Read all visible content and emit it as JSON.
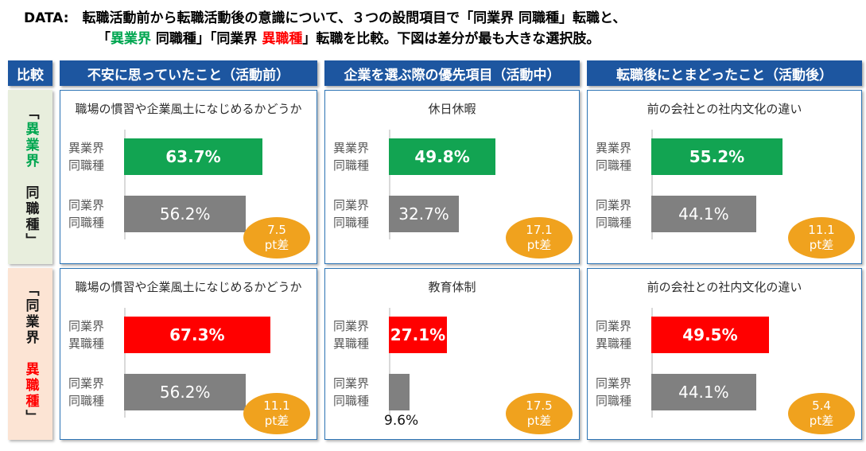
{
  "scale_max": 85,
  "colors": {
    "header_bg": "#1D56A0",
    "cell_border": "#2E75B6",
    "green": "#12A452",
    "green_text": "#00A650",
    "red": "#FF0000",
    "gray": "#808080",
    "orange": "#F0A21E",
    "row1_label_bg": "#E8EEDD",
    "row2_label_bg": "#FCE4D4"
  },
  "title": {
    "line1": "DATA:　転職活動前から転職活動後の意識について、３つの設問項目で「同業界 同職種」転職と、",
    "line2_segments": [
      {
        "t": "「",
        "c": "ink"
      },
      {
        "t": "異業界",
        "c": "green"
      },
      {
        "t": " 同職種」「同業界 ",
        "c": "ink"
      },
      {
        "t": "異職種",
        "c": "red"
      },
      {
        "t": "」転職を比較。下図は差分が最も大きな選択肢。",
        "c": "ink"
      }
    ]
  },
  "header": {
    "corner": "比較",
    "columns": [
      "不安に思っていたこと（活動前）",
      "企業を選ぶ際の優先項目（活動中）",
      "転職後にとまどったこと（活動後）"
    ]
  },
  "rows": [
    {
      "label_segments": [
        {
          "t": "「",
          "c": "ink"
        },
        {
          "t": "異業界",
          "c": "green"
        },
        {
          "t": "　同職種」",
          "c": "ink"
        }
      ],
      "cells": [
        {
          "title": "職場の慣習や企業風土になじめるかどうか",
          "bars": [
            {
              "cat1": "異業界",
              "cat2": "同職種",
              "value": 63.7,
              "display": "63.7%",
              "color": "green",
              "label_pos": "inside"
            },
            {
              "cat1": "同業界",
              "cat2": "同職種",
              "value": 56.2,
              "display": "56.2%",
              "color": "gray",
              "label_pos": "inside"
            }
          ],
          "badge": {
            "value": "7.5",
            "unit": "pt差"
          }
        },
        {
          "title": "休日休暇",
          "bars": [
            {
              "cat1": "異業界",
              "cat2": "同職種",
              "value": 49.8,
              "display": "49.8%",
              "color": "green",
              "label_pos": "inside"
            },
            {
              "cat1": "同業界",
              "cat2": "同職種",
              "value": 32.7,
              "display": "32.7%",
              "color": "gray",
              "label_pos": "inside"
            }
          ],
          "badge": {
            "value": "17.1",
            "unit": "pt差"
          }
        },
        {
          "title": "前の会社との社内文化の違い",
          "bars": [
            {
              "cat1": "異業界",
              "cat2": "同職種",
              "value": 55.2,
              "display": "55.2%",
              "color": "green",
              "label_pos": "inside"
            },
            {
              "cat1": "同業界",
              "cat2": "同職種",
              "value": 44.1,
              "display": "44.1%",
              "color": "gray",
              "label_pos": "inside"
            }
          ],
          "badge": {
            "value": "11.1",
            "unit": "pt差"
          }
        }
      ]
    },
    {
      "label_segments": [
        {
          "t": "「同業界　",
          "c": "ink"
        },
        {
          "t": "異職種",
          "c": "red"
        },
        {
          "t": "」",
          "c": "ink"
        }
      ],
      "cells": [
        {
          "title": "職場の慣習や企業風土になじめるかどうか",
          "bars": [
            {
              "cat1": "同業界",
              "cat2": "異職種",
              "value": 67.3,
              "display": "67.3%",
              "color": "red",
              "label_pos": "inside"
            },
            {
              "cat1": "同業界",
              "cat2": "同職種",
              "value": 56.2,
              "display": "56.2%",
              "color": "gray",
              "label_pos": "inside"
            }
          ],
          "badge": {
            "value": "11.1",
            "unit": "pt差"
          }
        },
        {
          "title": "教育体制",
          "bars": [
            {
              "cat1": "同業界",
              "cat2": "異職種",
              "value": 27.1,
              "display": "27.1%",
              "color": "red",
              "label_pos": "inside"
            },
            {
              "cat1": "同業界",
              "cat2": "同職種",
              "value": 9.6,
              "display": "9.6%",
              "color": "gray",
              "label_pos": "below"
            }
          ],
          "badge": {
            "value": "17.5",
            "unit": "pt差"
          }
        },
        {
          "title": "前の会社との社内文化の違い",
          "bars": [
            {
              "cat1": "同業界",
              "cat2": "異職種",
              "value": 49.5,
              "display": "49.5%",
              "color": "red",
              "label_pos": "inside"
            },
            {
              "cat1": "同業界",
              "cat2": "同職種",
              "value": 44.1,
              "display": "44.1%",
              "color": "gray",
              "label_pos": "inside"
            }
          ],
          "badge": {
            "value": "5.4",
            "unit": "pt差"
          }
        }
      ]
    }
  ],
  "chart_data": [
    {
      "type": "bar",
      "orientation": "horizontal",
      "row": "「異業界 同職種」",
      "column": "不安に思っていたこと（活動前）",
      "title": "職場の慣習や企業風土になじめるかどうか",
      "categories": [
        "異業界 同職種",
        "同業界 同職種"
      ],
      "values": [
        63.7,
        56.2
      ],
      "unit": "%",
      "diff": "7.5pt差",
      "xlim": [
        0,
        85
      ],
      "grid": false,
      "legend": false
    },
    {
      "type": "bar",
      "orientation": "horizontal",
      "row": "「異業界 同職種」",
      "column": "企業を選ぶ際の優先項目（活動中）",
      "title": "休日休暇",
      "categories": [
        "異業界 同職種",
        "同業界 同職種"
      ],
      "values": [
        49.8,
        32.7
      ],
      "unit": "%",
      "diff": "17.1pt差",
      "xlim": [
        0,
        85
      ],
      "grid": false,
      "legend": false
    },
    {
      "type": "bar",
      "orientation": "horizontal",
      "row": "「異業界 同職種」",
      "column": "転職後にとまどったこと（活動後）",
      "title": "前の会社との社内文化の違い",
      "categories": [
        "異業界 同職種",
        "同業界 同職種"
      ],
      "values": [
        55.2,
        44.1
      ],
      "unit": "%",
      "diff": "11.1pt差",
      "xlim": [
        0,
        85
      ],
      "grid": false,
      "legend": false
    },
    {
      "type": "bar",
      "orientation": "horizontal",
      "row": "「同業界 異職種」",
      "column": "不安に思っていたこと（活動前）",
      "title": "職場の慣習や企業風土になじめるかどうか",
      "categories": [
        "同業界 異職種",
        "同業界 同職種"
      ],
      "values": [
        67.3,
        56.2
      ],
      "unit": "%",
      "diff": "11.1pt差",
      "xlim": [
        0,
        85
      ],
      "grid": false,
      "legend": false
    },
    {
      "type": "bar",
      "orientation": "horizontal",
      "row": "「同業界 異職種」",
      "column": "企業を選ぶ際の優先項目（活動中）",
      "title": "教育体制",
      "categories": [
        "同業界 異職種",
        "同業界 同職種"
      ],
      "values": [
        27.1,
        9.6
      ],
      "unit": "%",
      "diff": "17.5pt差",
      "xlim": [
        0,
        85
      ],
      "grid": false,
      "legend": false
    },
    {
      "type": "bar",
      "orientation": "horizontal",
      "row": "「同業界 異職種」",
      "column": "転職後にとまどったこと（活動後）",
      "title": "前の会社との社内文化の違い",
      "categories": [
        "同業界 異職種",
        "同業界 同職種"
      ],
      "values": [
        49.5,
        44.1
      ],
      "unit": "%",
      "diff": "5.4pt差",
      "xlim": [
        0,
        85
      ],
      "grid": false,
      "legend": false
    }
  ]
}
